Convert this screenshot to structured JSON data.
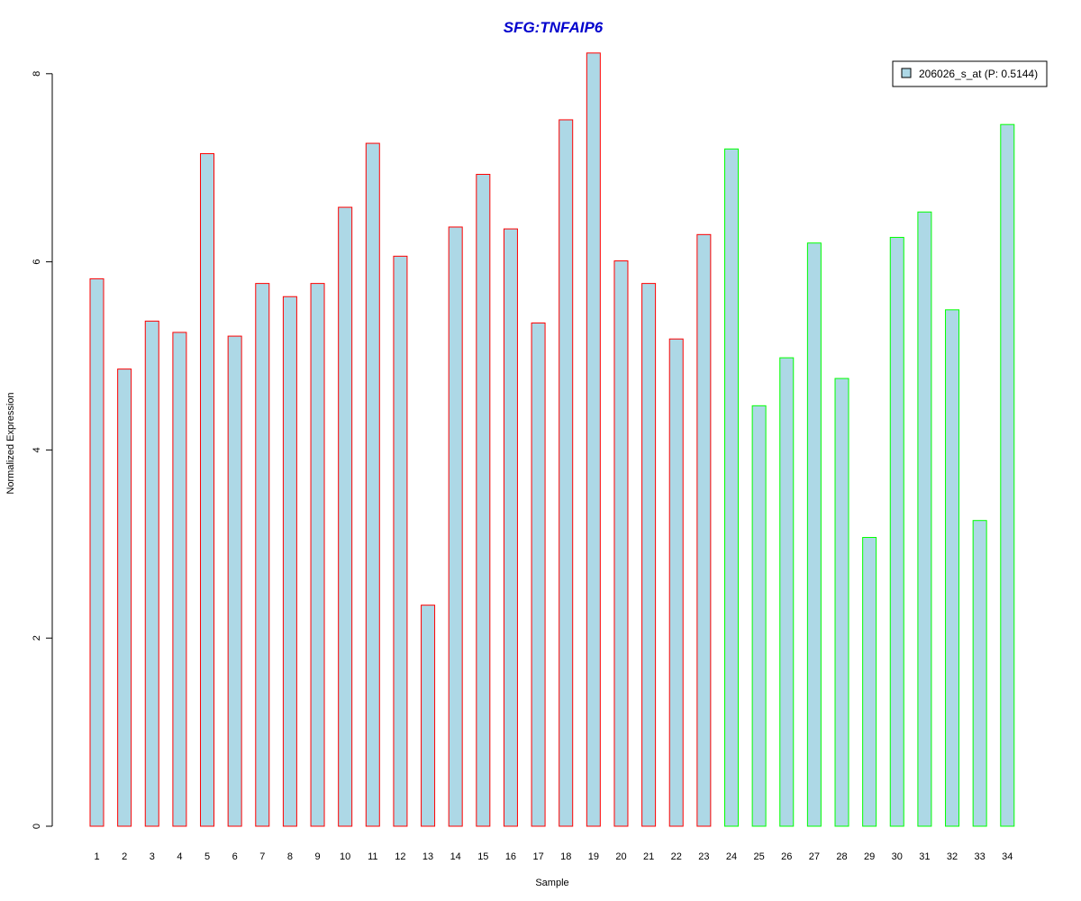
{
  "chart_data": {
    "type": "bar",
    "title": "SFG:TNFAIP6",
    "xlabel": "Sample",
    "ylabel": "Normalized Expression",
    "ylim": [
      0,
      8.2
    ],
    "yticks": [
      0,
      2,
      4,
      6,
      8
    ],
    "categories": [
      "1",
      "2",
      "3",
      "4",
      "5",
      "6",
      "7",
      "8",
      "9",
      "10",
      "11",
      "12",
      "13",
      "14",
      "15",
      "16",
      "17",
      "18",
      "19",
      "20",
      "21",
      "22",
      "23",
      "24",
      "25",
      "26",
      "27",
      "28",
      "29",
      "30",
      "31",
      "32",
      "33",
      "34"
    ],
    "series": [
      {
        "name": "206026_s_at (P: 0.5144)",
        "values": [
          5.82,
          4.86,
          5.37,
          5.25,
          7.15,
          5.21,
          5.77,
          5.63,
          5.77,
          6.58,
          7.26,
          6.06,
          2.35,
          6.37,
          6.93,
          6.35,
          5.35,
          7.51,
          8.22,
          6.01,
          5.77,
          5.18,
          6.29,
          7.2,
          4.47,
          4.98,
          6.2,
          4.76,
          3.07,
          6.26,
          6.53,
          5.49,
          3.25,
          7.46
        ]
      }
    ],
    "group_sizes": [
      23,
      11
    ],
    "group_border_colors": [
      "#ff0000",
      "#00ff00"
    ],
    "bar_fill": "#add8e6",
    "title_color": "#0000cd",
    "legend_position": "top-right",
    "grid": false
  }
}
